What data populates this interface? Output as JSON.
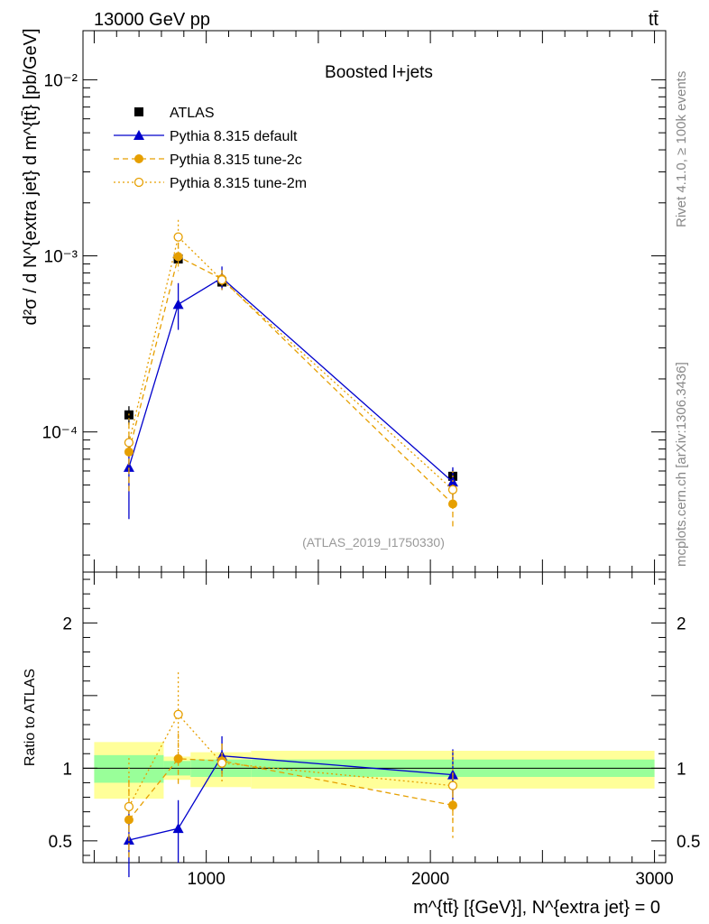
{
  "header": {
    "process": "13000 GeV pp",
    "final_state": "tt̄"
  },
  "side_labels": {
    "rivet": "Rivet 4.1.0, ≥ 100k events",
    "source": "mcplots.cern.ch [arXiv:1306.3436]"
  },
  "chart_data": [
    {
      "panel": "main",
      "type": "scatter",
      "title": "Boosted l+jets",
      "analysis_id": "(ATLAS_2019_I1750330)",
      "ylabel": "d²σ / d N^{extra jet} d m^{tt̄} [pb/GeV]",
      "yscale": "log",
      "ylim": [
        1.6e-05,
        0.019
      ],
      "xlim": [
        450,
        3050
      ],
      "y_tick_labels": [
        {
          "value": 0.0001,
          "label": "10⁻⁴"
        },
        {
          "value": 0.001,
          "label": "10⁻³"
        },
        {
          "value": 0.01,
          "label": "10⁻²"
        }
      ],
      "legend_position": "top-left",
      "series": [
        {
          "name": "ATLAS",
          "color": "#000000",
          "x": [
            655,
            875,
            1070,
            2100
          ],
          "values": [
            0.000125,
            0.00096,
            0.00071,
            5.6e-05
          ],
          "err_low": [
            0.00011,
            0.0009,
            0.00066,
            5.1e-05
          ],
          "err_high": [
            0.00014,
            0.00103,
            0.00077,
            6.1e-05
          ]
        },
        {
          "name": "Pythia 8.315 default",
          "color": "#0000cc",
          "x": [
            655,
            875,
            1070,
            2100
          ],
          "values": [
            6.3e-05,
            0.00053,
            0.00075,
            5.2e-05
          ],
          "err_low": [
            3.2e-05,
            0.00038,
            0.00064,
            4.2e-05
          ],
          "err_high": [
            9.5e-05,
            0.0007,
            0.00087,
            6.3e-05
          ]
        },
        {
          "name": "Pythia 8.315 tune-2c",
          "color": "#e69f00",
          "x": [
            655,
            875,
            1070,
            2100
          ],
          "values": [
            7.7e-05,
            0.00099,
            0.00074,
            3.9e-05
          ],
          "err_low": [
            4.4e-05,
            0.00082,
            0.00066,
            2.9e-05
          ],
          "err_high": [
            0.000113,
            0.00118,
            0.00083,
            5e-05
          ]
        },
        {
          "name": "Pythia 8.315 tune-2m",
          "color": "#e69f00",
          "x": [
            655,
            875,
            1070,
            2100
          ],
          "values": [
            8.7e-05,
            0.00128,
            0.00073,
            4.7e-05
          ],
          "err_low": [
            5e-05,
            0.00104,
            0.00064,
            3.5e-05
          ],
          "err_high": [
            0.000127,
            0.0016,
            0.00083,
            6e-05
          ]
        }
      ]
    },
    {
      "panel": "ratio",
      "type": "scatter",
      "ylabel": "Ratio to ATLAS",
      "xlabel": "m^{tt̄} [{GeV}], N^{extra jet} = 0",
      "ylim": [
        0.35,
        2.35
      ],
      "xlim": [
        450,
        3050
      ],
      "x_tick_labels": [
        {
          "value": 1000,
          "label": "1000"
        },
        {
          "value": 2000,
          "label": "2000"
        },
        {
          "value": 3000,
          "label": "3000"
        }
      ],
      "y_tick_labels": [
        {
          "value": 0.5,
          "label": "0.5"
        },
        {
          "value": 1,
          "label": "1"
        },
        {
          "value": 2,
          "label": "2"
        }
      ],
      "bands": [
        {
          "x_range": [
            500,
            810
          ],
          "stat": [
            0.9,
            1.09
          ],
          "total": [
            0.79,
            1.18
          ]
        },
        {
          "x_range": [
            810,
            930
          ],
          "stat": [
            0.95,
            1.05
          ],
          "total": [
            0.92,
            1.08
          ]
        },
        {
          "x_range": [
            930,
            1200
          ],
          "stat": [
            0.94,
            1.06
          ],
          "total": [
            0.87,
            1.11
          ]
        },
        {
          "x_range": [
            1200,
            3000
          ],
          "stat": [
            0.94,
            1.06
          ],
          "total": [
            0.86,
            1.12
          ]
        }
      ],
      "series": [
        {
          "name": "Pythia 8.315 default",
          "color": "#0000cc",
          "x": [
            655,
            875,
            1070,
            2100
          ],
          "values": [
            0.505,
            0.585,
            1.085,
            0.955
          ],
          "err_low": [
            0.25,
            0.35,
            0.96,
            0.78
          ],
          "err_high": [
            0.76,
            0.78,
            1.22,
            1.13
          ]
        },
        {
          "name": "Pythia 8.315 tune-2c",
          "color": "#e69f00",
          "x": [
            655,
            875,
            1070,
            2100
          ],
          "values": [
            0.645,
            1.065,
            1.05,
            0.745
          ],
          "err_low": [
            0.36,
            0.87,
            0.92,
            0.52
          ],
          "err_high": [
            0.92,
            1.24,
            1.17,
            0.97
          ]
        },
        {
          "name": "Pythia 8.315 tune-2m",
          "color": "#e69f00",
          "x": [
            655,
            875,
            1070,
            2100
          ],
          "values": [
            0.735,
            1.37,
            1.035,
            0.88
          ],
          "err_low": [
            0.4,
            1.1,
            0.9,
            0.64
          ],
          "err_high": [
            1.07,
            1.66,
            1.17,
            1.12
          ]
        }
      ]
    }
  ]
}
